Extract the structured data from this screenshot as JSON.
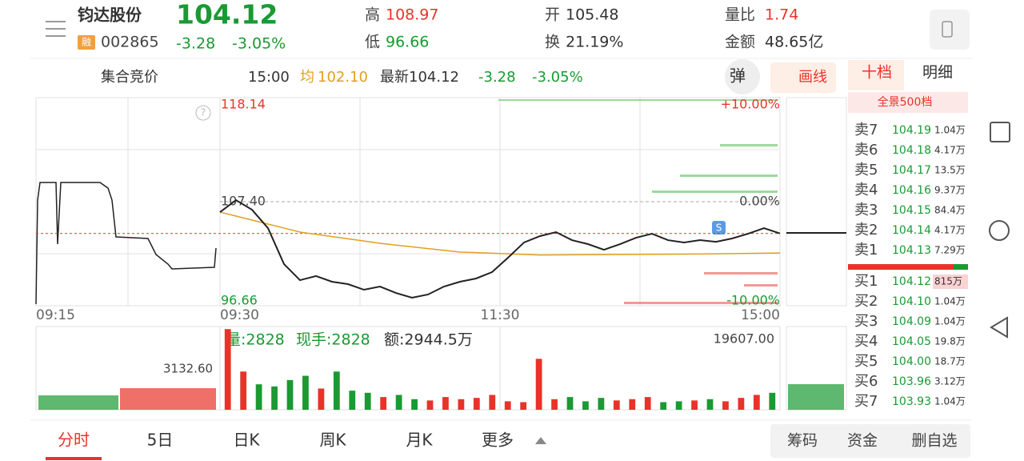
{
  "header": {
    "name": "钧达股份",
    "badge": "融",
    "code": "002865",
    "price": "104.12",
    "change": "-3.28",
    "change_pct": "-3.05%",
    "high_label": "高",
    "high": "108.97",
    "low_label": "低",
    "low": "96.66",
    "open_label": "开",
    "open": "105.48",
    "turnover_label": "换",
    "turnover": "21.19%",
    "ratio_label": "量比",
    "ratio": "1.74",
    "amount_label": "金额",
    "amount": "48.65亿"
  },
  "status": {
    "auction": "集合竞价",
    "time": "15:00",
    "avg_label": "均",
    "avg": "102.10",
    "latest": "最新104.12",
    "change": "-3.28",
    "change_pct": "-3.05%",
    "btn_pop": "弹",
    "btn_draw": "画线"
  },
  "chart_data": [
    {
      "type": "line",
      "x_labels": [
        "09:15",
        "09:30",
        "11:30",
        "15:00"
      ],
      "ylim": [
        96.66,
        118.14
      ],
      "yticks": [
        118.14,
        {
          "value": 107.4,
          "label": "107.40"
        },
        96.66
      ],
      "y2lim": [
        -10,
        10
      ],
      "y2ticks": [
        {
          "value": 10,
          "label": "+10.00%"
        },
        {
          "value": 0,
          "label": "0.00%"
        },
        {
          "value": -10,
          "label": "-10.00%"
        }
      ],
      "series": [
        {
          "color": "#222222",
          "values": [
            106.32,
            107.56,
            106.57,
            104.67,
            100.96,
            99.3,
            99.72,
            99.14,
            98.89,
            98.31,
            98.64,
            97.98,
            97.49,
            97.82,
            98.64,
            99.14,
            99.47,
            100.13,
            101.62,
            103.19,
            103.85,
            104.26,
            103.43,
            103.02,
            102.44,
            103.02,
            103.68,
            104.09,
            103.43,
            103.19,
            103.43,
            103.26,
            103.6,
            104.09,
            104.67,
            104.12
          ]
        },
        {
          "color": "#e0a020",
          "values": [
            106.32,
            105.91,
            105.5,
            105.09,
            104.68,
            104.26,
            104.03,
            103.8,
            103.57,
            103.34,
            103.1,
            102.92,
            102.74,
            102.56,
            102.38,
            102.2,
            102.14,
            102.08,
            102.02,
            101.96,
            101.9,
            101.91,
            101.92,
            101.93,
            101.94,
            101.95,
            101.96,
            101.97,
            101.98,
            101.99,
            102.0,
            102.02,
            102.04,
            102.06,
            102.08,
            102.1
          ]
        }
      ]
    },
    {
      "type": "bar",
      "texts": [
        "量:2828",
        "现手:2828",
        "额:2944.5万"
      ],
      "max_label": "19607.00",
      "pre_max_label": "3132.60",
      "ylim": [
        0,
        19607
      ],
      "values": [
        19000,
        9000,
        6000,
        5500,
        7000,
        8000,
        5000,
        9000,
        4500,
        4000,
        3000,
        3500,
        2500,
        2200,
        3000,
        2500,
        2800,
        3500,
        2000,
        1800,
        12000,
        2500,
        3000,
        2000,
        2800,
        2200,
        2500,
        3000,
        1800,
        2000,
        2200,
        2500,
        2000,
        2800,
        3500,
        4000
      ]
    }
  ],
  "order_book": {
    "tabs": [
      "十档",
      "明细"
    ],
    "full": "全景500档",
    "asks": [
      {
        "label": "卖7",
        "price": "104.19",
        "vol": "1.04万"
      },
      {
        "label": "卖6",
        "price": "104.18",
        "vol": "4.17万"
      },
      {
        "label": "卖5",
        "price": "104.17",
        "vol": "13.5万"
      },
      {
        "label": "卖4",
        "price": "104.16",
        "vol": "9.37万"
      },
      {
        "label": "卖3",
        "price": "104.15",
        "vol": "84.4万"
      },
      {
        "label": "卖2",
        "price": "104.14",
        "vol": "4.17万"
      },
      {
        "label": "卖1",
        "price": "104.13",
        "vol": "7.29万"
      }
    ],
    "bids": [
      {
        "label": "买1",
        "price": "104.12",
        "vol": "815万"
      },
      {
        "label": "买2",
        "price": "104.10",
        "vol": "1.04万"
      },
      {
        "label": "买3",
        "price": "104.09",
        "vol": "1.04万"
      },
      {
        "label": "买4",
        "price": "104.05",
        "vol": "19.8万"
      },
      {
        "label": "买5",
        "price": "104.00",
        "vol": "18.7万"
      },
      {
        "label": "买6",
        "price": "103.96",
        "vol": "3.12万"
      },
      {
        "label": "买7",
        "price": "103.93",
        "vol": "1.04万"
      }
    ]
  },
  "tabs": [
    "分时",
    "5日",
    "日K",
    "周K",
    "月K",
    "更多"
  ],
  "actions": [
    "筹码",
    "资金",
    "删自选"
  ]
}
